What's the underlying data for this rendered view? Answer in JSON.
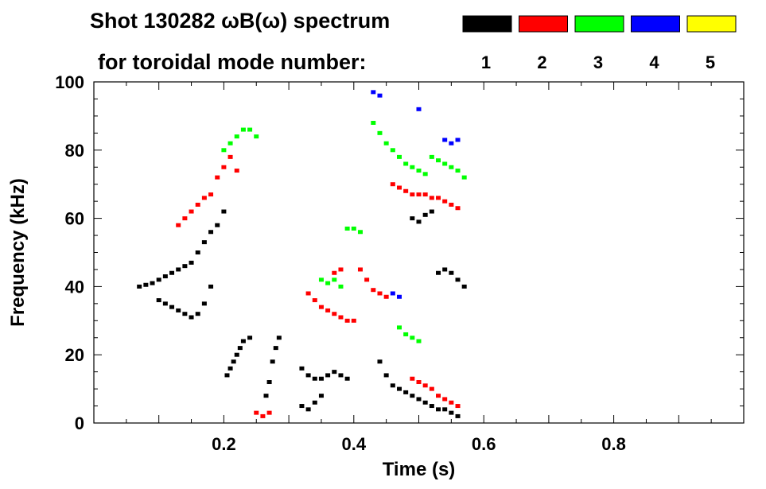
{
  "chart_data": {
    "type": "scatter",
    "title": "Shot 130282 ωB(ω) spectrum",
    "legend_title": "for toroidal mode number:",
    "xlabel": "Time (s)",
    "ylabel": "Frequency (kHz)",
    "xlim": [
      0.0,
      1.0
    ],
    "ylim": [
      0,
      100
    ],
    "x_ticks": [
      0.2,
      0.4,
      0.6,
      0.8
    ],
    "x_tick_labels": [
      "0.2",
      "0.4",
      "0.6",
      "0.8"
    ],
    "y_ticks": [
      0,
      20,
      40,
      60,
      80,
      100
    ],
    "y_tick_labels": [
      "0",
      "20",
      "40",
      "60",
      "80",
      "100"
    ],
    "legend_position": "top-right",
    "series": [
      {
        "name": "1",
        "color": "#000000",
        "points": [
          [
            0.07,
            40
          ],
          [
            0.08,
            40.5
          ],
          [
            0.09,
            41
          ],
          [
            0.1,
            42
          ],
          [
            0.11,
            43
          ],
          [
            0.12,
            44
          ],
          [
            0.13,
            45
          ],
          [
            0.14,
            46
          ],
          [
            0.15,
            47
          ],
          [
            0.16,
            50
          ],
          [
            0.17,
            53
          ],
          [
            0.18,
            56
          ],
          [
            0.1,
            36
          ],
          [
            0.11,
            35
          ],
          [
            0.12,
            34
          ],
          [
            0.13,
            33
          ],
          [
            0.14,
            32
          ],
          [
            0.15,
            31
          ],
          [
            0.16,
            32
          ],
          [
            0.17,
            35
          ],
          [
            0.18,
            40
          ],
          [
            0.19,
            58
          ],
          [
            0.2,
            62
          ],
          [
            0.205,
            14
          ],
          [
            0.21,
            16
          ],
          [
            0.215,
            18
          ],
          [
            0.22,
            20
          ],
          [
            0.225,
            22
          ],
          [
            0.23,
            24
          ],
          [
            0.24,
            25
          ],
          [
            0.265,
            8
          ],
          [
            0.27,
            12
          ],
          [
            0.275,
            18
          ],
          [
            0.28,
            22
          ],
          [
            0.285,
            25
          ],
          [
            0.32,
            16
          ],
          [
            0.33,
            14
          ],
          [
            0.34,
            13
          ],
          [
            0.35,
            13
          ],
          [
            0.36,
            14
          ],
          [
            0.37,
            15
          ],
          [
            0.38,
            14
          ],
          [
            0.39,
            13
          ],
          [
            0.32,
            5
          ],
          [
            0.33,
            4
          ],
          [
            0.34,
            6
          ],
          [
            0.35,
            8
          ],
          [
            0.44,
            18
          ],
          [
            0.45,
            14
          ],
          [
            0.46,
            11
          ],
          [
            0.47,
            10
          ],
          [
            0.48,
            9
          ],
          [
            0.49,
            8
          ],
          [
            0.5,
            7
          ],
          [
            0.51,
            6
          ],
          [
            0.52,
            5
          ],
          [
            0.53,
            4
          ],
          [
            0.54,
            4
          ],
          [
            0.55,
            3
          ],
          [
            0.56,
            2
          ],
          [
            0.49,
            60
          ],
          [
            0.5,
            59
          ],
          [
            0.51,
            61
          ],
          [
            0.52,
            62
          ],
          [
            0.53,
            44
          ],
          [
            0.54,
            45
          ],
          [
            0.55,
            44
          ],
          [
            0.56,
            42
          ],
          [
            0.57,
            40
          ]
        ]
      },
      {
        "name": "2",
        "color": "#ff0000",
        "points": [
          [
            0.13,
            58
          ],
          [
            0.14,
            60
          ],
          [
            0.15,
            62
          ],
          [
            0.16,
            64
          ],
          [
            0.17,
            66
          ],
          [
            0.18,
            67
          ],
          [
            0.19,
            72
          ],
          [
            0.2,
            75
          ],
          [
            0.21,
            78
          ],
          [
            0.22,
            74
          ],
          [
            0.33,
            38
          ],
          [
            0.34,
            36
          ],
          [
            0.35,
            34
          ],
          [
            0.36,
            33
          ],
          [
            0.37,
            32
          ],
          [
            0.38,
            31
          ],
          [
            0.39,
            30
          ],
          [
            0.4,
            30
          ],
          [
            0.37,
            44
          ],
          [
            0.38,
            45
          ],
          [
            0.41,
            45
          ],
          [
            0.42,
            42
          ],
          [
            0.43,
            39
          ],
          [
            0.44,
            38
          ],
          [
            0.45,
            37
          ],
          [
            0.46,
            70
          ],
          [
            0.47,
            69
          ],
          [
            0.48,
            68
          ],
          [
            0.49,
            67
          ],
          [
            0.5,
            67
          ],
          [
            0.51,
            67
          ],
          [
            0.52,
            66
          ],
          [
            0.53,
            66
          ],
          [
            0.54,
            65
          ],
          [
            0.55,
            64
          ],
          [
            0.56,
            63
          ],
          [
            0.49,
            13
          ],
          [
            0.5,
            12
          ],
          [
            0.51,
            11
          ],
          [
            0.52,
            10
          ],
          [
            0.53,
            8
          ],
          [
            0.54,
            7
          ],
          [
            0.55,
            6
          ],
          [
            0.56,
            5
          ],
          [
            0.25,
            3
          ],
          [
            0.26,
            2
          ],
          [
            0.27,
            3
          ]
        ]
      },
      {
        "name": "3",
        "color": "#00ff00",
        "points": [
          [
            0.2,
            80
          ],
          [
            0.21,
            82
          ],
          [
            0.22,
            84
          ],
          [
            0.23,
            86
          ],
          [
            0.24,
            86
          ],
          [
            0.25,
            84
          ],
          [
            0.43,
            88
          ],
          [
            0.44,
            85
          ],
          [
            0.45,
            82
          ],
          [
            0.46,
            80
          ],
          [
            0.47,
            78
          ],
          [
            0.48,
            76
          ],
          [
            0.49,
            75
          ],
          [
            0.5,
            74
          ],
          [
            0.51,
            73
          ],
          [
            0.52,
            78
          ],
          [
            0.53,
            77
          ],
          [
            0.54,
            76
          ],
          [
            0.55,
            75
          ],
          [
            0.56,
            74
          ],
          [
            0.57,
            72
          ],
          [
            0.35,
            42
          ],
          [
            0.36,
            41
          ],
          [
            0.37,
            42
          ],
          [
            0.38,
            40
          ],
          [
            0.39,
            57
          ],
          [
            0.4,
            57
          ],
          [
            0.41,
            56
          ],
          [
            0.47,
            28
          ],
          [
            0.48,
            26
          ],
          [
            0.49,
            25
          ],
          [
            0.5,
            24
          ]
        ]
      },
      {
        "name": "4",
        "color": "#0000ff",
        "points": [
          [
            0.43,
            97
          ],
          [
            0.44,
            96
          ],
          [
            0.5,
            92
          ],
          [
            0.54,
            83
          ],
          [
            0.55,
            82
          ],
          [
            0.56,
            83
          ],
          [
            0.46,
            38
          ],
          [
            0.47,
            37
          ]
        ]
      },
      {
        "name": "5",
        "color": "#ffff00",
        "points": []
      }
    ]
  }
}
